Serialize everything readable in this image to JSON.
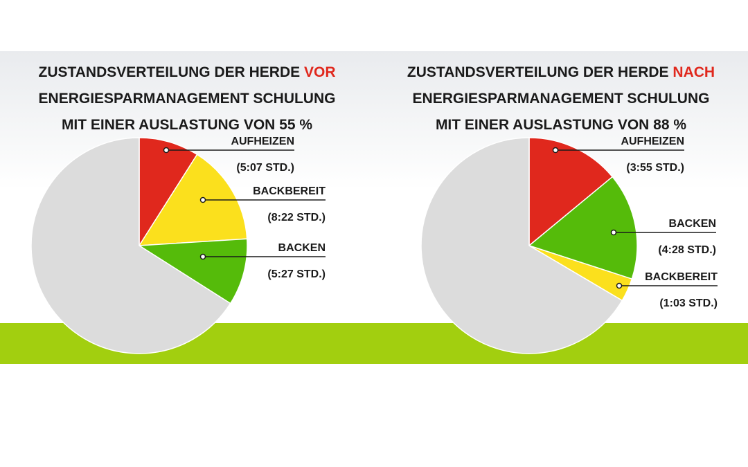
{
  "charts": [
    {
      "title_line1": "ZUSTANDSVERTEILUNG DER HERDE",
      "title_highlight": "VOR",
      "title_line2": "ENERGIESPARMANAGEMENT SCHULUNG",
      "title_line3": "MIT EINER AUSLASTUNG VON 55 %"
    },
    {
      "title_line1": "ZUSTANDSVERTEILUNG DER HERDE",
      "title_highlight": "NACH",
      "title_line2": "ENERGIESPARMANAGEMENT SCHULUNG",
      "title_line3": "MIT EINER AUSLASTUNG VON 88 %"
    }
  ],
  "colors": {
    "red": "#e0281d",
    "yellow": "#fbe01d",
    "green": "#55bb0a",
    "grey": "#dcdcdc",
    "highlight": "#e0281d",
    "grass": "#a2cf0f"
  },
  "chart_data": [
    {
      "type": "pie",
      "title": "ZUSTANDSVERTEILUNG DER HERDE VOR ENERGIESPARMANAGEMENT SCHULUNG MIT EINER AUSLASTUNG VON 55 %",
      "slices": [
        {
          "label": "AUFHEIZEN",
          "value_label": "(5:07 STD.)",
          "value_percent": 9,
          "color": "red"
        },
        {
          "label": "BACKBEREIT",
          "value_label": "(8:22 STD.)",
          "value_percent": 15,
          "color": "yellow"
        },
        {
          "label": "BACKEN",
          "value_label": "(5:27 STD.)",
          "value_percent": 10,
          "color": "green"
        },
        {
          "label": "",
          "value_label": "",
          "value_percent": 66,
          "color": "grey"
        }
      ]
    },
    {
      "type": "pie",
      "title": "ZUSTANDSVERTEILUNG DER HERDE NACH ENERGIESPARMANAGEMENT SCHULUNG MIT EINER AUSLASTUNG VON 88 %",
      "slices": [
        {
          "label": "AUFHEIZEN",
          "value_label": "(3:55 STD.)",
          "value_percent": 14,
          "color": "red"
        },
        {
          "label": "BACKEN",
          "value_label": "(4:28 STD.)",
          "value_percent": 16,
          "color": "green"
        },
        {
          "label": "BACKBEREIT",
          "value_label": "(1:03 STD.)",
          "value_percent": 3.5,
          "color": "yellow"
        },
        {
          "label": "",
          "value_label": "",
          "value_percent": 66.5,
          "color": "grey"
        }
      ]
    }
  ]
}
